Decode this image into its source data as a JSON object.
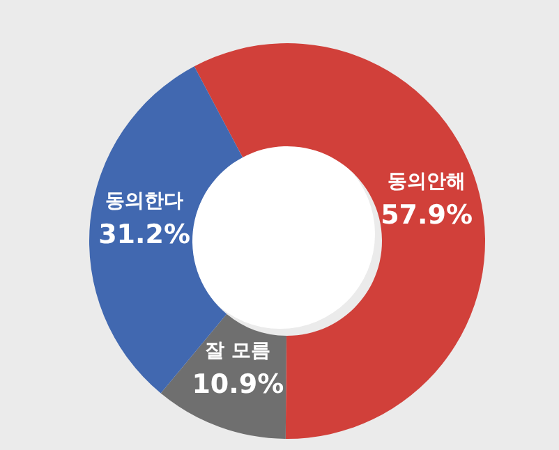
{
  "chart_data": {
    "type": "donut",
    "categories": [
      "동의안해",
      "잘 모름",
      "동의한다"
    ],
    "values": [
      57.9,
      10.9,
      31.2
    ],
    "value_labels": [
      "57.9%",
      "10.9%",
      "31.2%"
    ],
    "colors": [
      "#d1403a",
      "#6f6f6f",
      "#4168b0"
    ]
  }
}
